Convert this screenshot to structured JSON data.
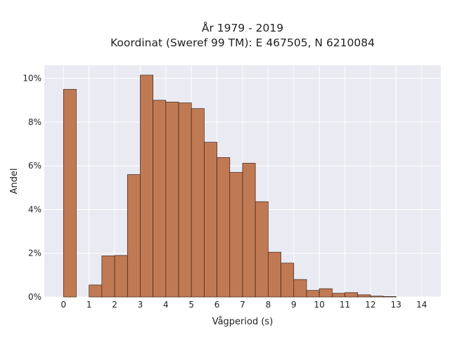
{
  "chart_data": {
    "type": "bar",
    "title_lines": [
      "År 1979 - 2019",
      "Koordinat (Sweref 99 TM): E 467505, N 6210084"
    ],
    "xlabel": "Vågperiod (s)",
    "ylabel": "Andel",
    "xlim": [
      -0.75,
      14.75
    ],
    "ylim": [
      0,
      10.6
    ],
    "x_ticks": [
      0,
      1,
      2,
      3,
      4,
      5,
      6,
      7,
      8,
      9,
      10,
      11,
      12,
      13,
      14
    ],
    "y_ticks": [
      0,
      2,
      4,
      6,
      8,
      10
    ],
    "y_tick_labels": [
      "0%",
      "2%",
      "4%",
      "6%",
      "8%",
      "10%"
    ],
    "bin_width": 0.5,
    "bin_left_edges": [
      0,
      1,
      1.5,
      2,
      2.5,
      3,
      3.5,
      4,
      4.5,
      5,
      5.5,
      6,
      6.5,
      7,
      7.5,
      8,
      8.5,
      9,
      9.5,
      10,
      10.5,
      11,
      11.5,
      12,
      12.5
    ],
    "values": [
      9.5,
      0.55,
      1.88,
      1.9,
      5.6,
      10.15,
      9.0,
      8.92,
      8.88,
      8.62,
      7.08,
      6.38,
      5.7,
      6.12,
      4.36,
      2.05,
      1.55,
      0.8,
      0.3,
      0.38,
      0.17,
      0.2,
      0.1,
      0.04,
      0.02
    ],
    "grid": true,
    "colors": {
      "bar_fill": "#c07a53",
      "bar_edge": "#3b2418",
      "plot_background": "#eaeaf2",
      "grid": "#ffffff"
    }
  }
}
